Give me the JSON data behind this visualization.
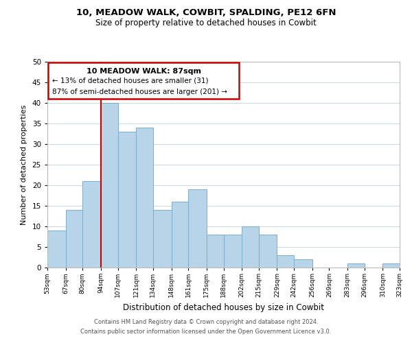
{
  "title": "10, MEADOW WALK, COWBIT, SPALDING, PE12 6FN",
  "subtitle": "Size of property relative to detached houses in Cowbit",
  "xlabel": "Distribution of detached houses by size in Cowbit",
  "ylabel": "Number of detached properties",
  "bar_color": "#b8d4e8",
  "bar_edge_color": "#7aaec8",
  "background_color": "#ffffff",
  "grid_color": "#d0d8e0",
  "annotation_box_color": "#ffffff",
  "annotation_box_edge": "#cc0000",
  "reference_line_color": "#cc0000",
  "bin_edges": [
    53,
    67,
    80,
    94,
    107,
    121,
    134,
    148,
    161,
    175,
    188,
    202,
    215,
    229,
    242,
    256,
    269,
    283,
    296,
    310,
    323
  ],
  "counts": [
    9,
    14,
    21,
    40,
    33,
    34,
    14,
    16,
    19,
    8,
    8,
    10,
    8,
    3,
    2,
    0,
    0,
    1,
    0,
    1
  ],
  "ylim": [
    0,
    50
  ],
  "yticks": [
    0,
    5,
    10,
    15,
    20,
    25,
    30,
    35,
    40,
    45,
    50
  ],
  "annotation_title": "10 MEADOW WALK: 87sqm",
  "annotation_line1": "← 13% of detached houses are smaller (31)",
  "annotation_line2": "87% of semi-detached houses are larger (201) →",
  "footer_line1": "Contains HM Land Registry data © Crown copyright and database right 2024.",
  "footer_line2": "Contains public sector information licensed under the Open Government Licence v3.0."
}
